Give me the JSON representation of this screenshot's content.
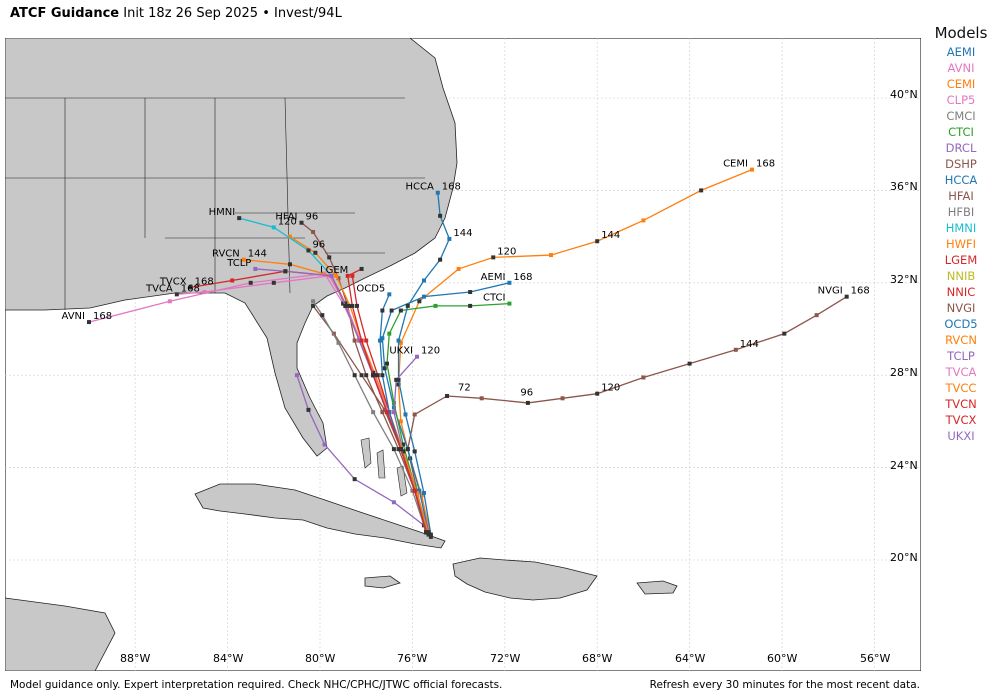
{
  "header": {
    "title_bold": "ATCF Guidance",
    "init": "Init 18z 26 Sep 2025",
    "bullet": "•",
    "storm": "Invest/94L"
  },
  "map": {
    "lon_ticks": [
      "88°W",
      "84°W",
      "80°W",
      "76°W",
      "72°W",
      "68°W",
      "64°W",
      "60°W",
      "56°W"
    ],
    "lat_ticks": [
      "40°N",
      "36°N",
      "32°N",
      "28°N",
      "24°N",
      "20°N"
    ]
  },
  "legend": {
    "title": "Models",
    "items": [
      {
        "name": "AEMI",
        "color": "#1f77b4"
      },
      {
        "name": "AVNI",
        "color": "#e377c2"
      },
      {
        "name": "CEMI",
        "color": "#ff7f0e"
      },
      {
        "name": "CLP5",
        "color": "#e377c2"
      },
      {
        "name": "CMCI",
        "color": "#7f7f7f"
      },
      {
        "name": "CTCI",
        "color": "#2ca02c"
      },
      {
        "name": "DRCL",
        "color": "#9467bd"
      },
      {
        "name": "DSHP",
        "color": "#8c564b"
      },
      {
        "name": "HCCA",
        "color": "#1f77b4"
      },
      {
        "name": "HFAI",
        "color": "#8c564b"
      },
      {
        "name": "HFBI",
        "color": "#7f7f7f"
      },
      {
        "name": "HMNI",
        "color": "#17becf"
      },
      {
        "name": "HWFI",
        "color": "#ff7f0e"
      },
      {
        "name": "LGEM",
        "color": "#d62728"
      },
      {
        "name": "NNIB",
        "color": "#bcbd22"
      },
      {
        "name": "NNIC",
        "color": "#d62728"
      },
      {
        "name": "NVGI",
        "color": "#8c564b"
      },
      {
        "name": "OCD5",
        "color": "#1f77b4"
      },
      {
        "name": "RVCN",
        "color": "#ff7f0e"
      },
      {
        "name": "TCLP",
        "color": "#9467bd"
      },
      {
        "name": "TVCA",
        "color": "#e377c2"
      },
      {
        "name": "TVCC",
        "color": "#ff7f0e"
      },
      {
        "name": "TVCN",
        "color": "#d62728"
      },
      {
        "name": "TVCX",
        "color": "#d62728"
      },
      {
        "name": "UKXI",
        "color": "#9467bd"
      }
    ]
  },
  "footer": {
    "left": "Model guidance only. Expert interpretation required. Check NHC/CPHC/JTWC official forecasts.",
    "right": "Refresh every 30 minutes for the most recent data."
  },
  "tracks": [
    {
      "model": "CEMI",
      "color": "#ff7f0e",
      "label": "CEMI",
      "pts": [
        [
          -75.2,
          21
        ],
        [
          -75.6,
          22.8
        ],
        [
          -76.1,
          24.4
        ],
        [
          -76.5,
          26
        ],
        [
          -76.6,
          27.6
        ],
        [
          -76.5,
          29.4
        ],
        [
          -75.7,
          31.2
        ],
        [
          -74,
          32.6
        ],
        [
          -72.5,
          33.1
        ],
        [
          -70,
          33.2
        ],
        [
          -68,
          33.8
        ],
        [
          -66,
          34.7
        ],
        [
          -63.5,
          36
        ],
        [
          -61.3,
          36.9
        ]
      ],
      "tau": [
        [
          "120",
          -72.5,
          33.1
        ],
        [
          "144",
          -68,
          33.8
        ],
        [
          "168",
          -61.3,
          36.9
        ]
      ]
    },
    {
      "model": "NVGI",
      "color": "#8c564b",
      "label": "NVGI",
      "pts": [
        [
          -75.4,
          21.2
        ],
        [
          -75.8,
          23
        ],
        [
          -76.2,
          24.8
        ],
        [
          -75.9,
          26.3
        ],
        [
          -74.5,
          27.1
        ],
        [
          -73,
          27
        ],
        [
          -71,
          26.8
        ],
        [
          -69.5,
          27
        ],
        [
          -68,
          27.2
        ],
        [
          -66,
          27.9
        ],
        [
          -64,
          28.5
        ],
        [
          -62,
          29.1
        ],
        [
          -59.9,
          29.8
        ],
        [
          -58.5,
          30.6
        ],
        [
          -57.2,
          31.4
        ]
      ],
      "tau": [
        [
          "72",
          -74.2,
          27.2
        ],
        [
          "96",
          -71.5,
          27
        ],
        [
          "120",
          -68,
          27.2
        ],
        [
          "144",
          -62,
          29.1
        ],
        [
          "168",
          -57.2,
          31.4
        ]
      ]
    },
    {
      "model": "AEMI",
      "color": "#1f77b4",
      "label": "AEMI",
      "pts": [
        [
          -75.3,
          21.2
        ],
        [
          -75.7,
          23
        ],
        [
          -76.2,
          24.8
        ],
        [
          -76.8,
          26.6
        ],
        [
          -77.2,
          28.3
        ],
        [
          -77.3,
          29.6
        ],
        [
          -76.9,
          30.8
        ],
        [
          -75.5,
          31.4
        ],
        [
          -73.5,
          31.6
        ],
        [
          -71.8,
          32
        ]
      ],
      "tau": [
        [
          "168",
          -71.8,
          32
        ]
      ]
    },
    {
      "model": "CTCI",
      "color": "#2ca02c",
      "label": "CTCI",
      "pts": [
        [
          -75.4,
          21.3
        ],
        [
          -75.9,
          23.2
        ],
        [
          -76.4,
          25
        ],
        [
          -76.8,
          26.8
        ],
        [
          -77.1,
          28.5
        ],
        [
          -77,
          29.8
        ],
        [
          -76.5,
          30.8
        ],
        [
          -75,
          31
        ],
        [
          -73.5,
          31
        ],
        [
          -71.8,
          31.1
        ]
      ],
      "tau": []
    },
    {
      "model": "HCCA",
      "color": "#1f77b4",
      "label": "HCCA",
      "pts": [
        [
          -75.2,
          21.1
        ],
        [
          -75.5,
          22.9
        ],
        [
          -75.9,
          24.7
        ],
        [
          -76.3,
          26.3
        ],
        [
          -76.6,
          27.8
        ],
        [
          -76.6,
          29.5
        ],
        [
          -76.2,
          31
        ],
        [
          -75.5,
          32.1
        ],
        [
          -74.8,
          33
        ],
        [
          -74.4,
          33.9
        ],
        [
          -74.8,
          34.9
        ],
        [
          -74.9,
          35.9
        ]
      ],
      "tau": [
        [
          "144",
          -74.4,
          33.9
        ],
        [
          "168",
          -74.9,
          35.9
        ]
      ]
    },
    {
      "model": "UKXI",
      "color": "#9467bd",
      "label": "UKXI",
      "pts": [
        [
          -75.3,
          21.2
        ],
        [
          -75.8,
          22.9
        ],
        [
          -76.4,
          24.7
        ],
        [
          -76.8,
          26.4
        ],
        [
          -76.7,
          27.8
        ],
        [
          -75.8,
          28.8
        ]
      ],
      "tau": [
        [
          "120",
          -75.8,
          28.8
        ]
      ]
    },
    {
      "model": "DRCL",
      "color": "#9467bd",
      "label": "",
      "pts": [
        [
          -75.5,
          21.5
        ],
        [
          -76.8,
          22.5
        ],
        [
          -78.5,
          23.5
        ],
        [
          -79.8,
          25
        ],
        [
          -80.5,
          26.5
        ],
        [
          -81,
          28
        ]
      ],
      "tau": []
    },
    {
      "model": "DSHP",
      "color": "#8c564b",
      "label": "",
      "pts": [
        [
          -75.4,
          21.2
        ],
        [
          -75.9,
          23
        ],
        [
          -76.5,
          24.8
        ],
        [
          -77.2,
          26.5
        ],
        [
          -78.2,
          28
        ],
        [
          -79.4,
          29.8
        ],
        [
          -80.3,
          31
        ]
      ],
      "tau": []
    },
    {
      "model": "HFAI",
      "color": "#8c564b",
      "label": "HFAI",
      "pts": [
        [
          -75.4,
          21.2
        ],
        [
          -75.9,
          23
        ],
        [
          -76.6,
          24.8
        ],
        [
          -77.3,
          26.4
        ],
        [
          -78,
          28
        ],
        [
          -78.5,
          29.5
        ],
        [
          -78.8,
          31
        ],
        [
          -79.2,
          32.2
        ],
        [
          -79.6,
          33.1
        ],
        [
          -80.3,
          34.2
        ],
        [
          -80.8,
          34.6
        ]
      ],
      "tau": [
        [
          "96",
          -80.8,
          34.6
        ]
      ]
    },
    {
      "model": "HWFI",
      "color": "#ff7f0e",
      "label": "",
      "pts": [
        [
          -75.3,
          21.1
        ],
        [
          -75.8,
          22.9
        ],
        [
          -76.4,
          24.7
        ],
        [
          -77,
          26.4
        ],
        [
          -77.6,
          28
        ],
        [
          -78.2,
          29.5
        ],
        [
          -78.7,
          31
        ],
        [
          -79.3,
          32.3
        ],
        [
          -80.2,
          33.3
        ],
        [
          -81.3,
          34
        ]
      ],
      "tau": []
    },
    {
      "model": "HMNI",
      "color": "#17becf",
      "label": "HMNI",
      "pts": [
        [
          -75.4,
          21.2
        ],
        [
          -75.9,
          23
        ],
        [
          -76.5,
          24.8
        ],
        [
          -77.1,
          26.4
        ],
        [
          -77.7,
          28
        ],
        [
          -78.3,
          29.5
        ],
        [
          -78.9,
          31
        ],
        [
          -79.5,
          32.3
        ],
        [
          -80.5,
          33.4
        ],
        [
          -82,
          34.4
        ],
        [
          -83.5,
          34.8
        ]
      ],
      "tau": [
        [
          "96",
          -80.5,
          33.4
        ],
        [
          "120",
          -82,
          34.4
        ]
      ]
    },
    {
      "model": "LGEM",
      "color": "#d62728",
      "label": "LGEM",
      "pts": [
        [
          -75.4,
          21.2
        ],
        [
          -75.9,
          23
        ],
        [
          -76.5,
          24.8
        ],
        [
          -77,
          26.4
        ],
        [
          -77.5,
          28
        ],
        [
          -78,
          29.5
        ],
        [
          -78.4,
          31
        ],
        [
          -78.6,
          32.3
        ]
      ],
      "tau": []
    },
    {
      "model": "TVCX",
      "color": "#d62728",
      "label": "TVCX",
      "pts": [
        [
          -75.4,
          21.2
        ],
        [
          -75.9,
          23
        ],
        [
          -76.5,
          24.8
        ],
        [
          -77.1,
          26.5
        ],
        [
          -77.7,
          28.1
        ],
        [
          -78.3,
          29.6
        ],
        [
          -78.9,
          31.1
        ],
        [
          -79.5,
          32.3
        ],
        [
          -81.5,
          32.5
        ],
        [
          -83.8,
          32.1
        ],
        [
          -85.6,
          31.8
        ]
      ],
      "tau": [
        [
          "168",
          -85.6,
          31.8
        ]
      ]
    },
    {
      "model": "TVCA",
      "color": "#e377c2",
      "label": "TVCA",
      "pts": [
        [
          -75.4,
          21.2
        ],
        [
          -75.9,
          23
        ],
        [
          -76.5,
          24.8
        ],
        [
          -77.1,
          26.5
        ],
        [
          -77.7,
          28.1
        ],
        [
          -78.3,
          29.6
        ],
        [
          -78.9,
          31.1
        ],
        [
          -79.6,
          32.3
        ],
        [
          -82,
          32
        ],
        [
          -85,
          31.6
        ],
        [
          -86.2,
          31.5
        ]
      ],
      "tau": [
        [
          "168",
          -86.2,
          31.5
        ]
      ]
    },
    {
      "model": "AVNI",
      "color": "#e377c2",
      "label": "AVNI",
      "pts": [
        [
          -75.4,
          21.2
        ],
        [
          -75.9,
          23
        ],
        [
          -76.5,
          24.8
        ],
        [
          -77.1,
          26.5
        ],
        [
          -77.7,
          28.1
        ],
        [
          -78.3,
          29.6
        ],
        [
          -79,
          31.1
        ],
        [
          -79.8,
          32.4
        ],
        [
          -83,
          32
        ],
        [
          -86.5,
          31.2
        ],
        [
          -90,
          30.3
        ]
      ],
      "tau": [
        [
          "168",
          -90,
          30.3
        ]
      ]
    },
    {
      "model": "RVCN",
      "color": "#ff7f0e",
      "label": "RVCN",
      "pts": [
        [
          -75.4,
          21.2
        ],
        [
          -75.9,
          23
        ],
        [
          -76.5,
          24.8
        ],
        [
          -77.1,
          26.4
        ],
        [
          -77.7,
          28
        ],
        [
          -78.3,
          29.5
        ],
        [
          -78.9,
          31
        ],
        [
          -79.5,
          32.3
        ],
        [
          -81.3,
          32.8
        ],
        [
          -83.3,
          33
        ]
      ],
      "tau": [
        [
          "144",
          -83.3,
          33
        ]
      ]
    },
    {
      "model": "TCLP",
      "color": "#9467bd",
      "label": "TCLP",
      "pts": [
        [
          -75.4,
          21.2
        ],
        [
          -75.9,
          23
        ],
        [
          -76.5,
          24.8
        ],
        [
          -77.1,
          26.4
        ],
        [
          -77.7,
          28
        ],
        [
          -78.3,
          29.5
        ],
        [
          -78.9,
          31
        ],
        [
          -79.5,
          32.3
        ],
        [
          -81.5,
          32.5
        ],
        [
          -82.8,
          32.6
        ]
      ],
      "tau": []
    },
    {
      "model": "CMCI",
      "color": "#7f7f7f",
      "label": "",
      "pts": [
        [
          -75.4,
          21.2
        ],
        [
          -76,
          23
        ],
        [
          -76.8,
          24.8
        ],
        [
          -77.7,
          26.4
        ],
        [
          -78.5,
          28
        ],
        [
          -79.2,
          29.4
        ],
        [
          -79.9,
          30.6
        ],
        [
          -80.3,
          31.2
        ]
      ],
      "tau": []
    },
    {
      "model": "OCD5",
      "color": "#1f77b4",
      "label": "OCD5",
      "pts": [
        [
          -75.4,
          21.2
        ],
        [
          -75.9,
          23
        ],
        [
          -76.5,
          24.8
        ],
        [
          -77,
          26.4
        ],
        [
          -77.3,
          28
        ],
        [
          -77.4,
          29.5
        ],
        [
          -77.3,
          30.8
        ],
        [
          -77,
          31.5
        ]
      ],
      "tau": []
    },
    {
      "model": "TVCN",
      "color": "#d62728",
      "label": "",
      "pts": [
        [
          -75.4,
          21.2
        ],
        [
          -75.9,
          23
        ],
        [
          -76.5,
          24.8
        ],
        [
          -77.1,
          26.4
        ],
        [
          -77.7,
          28
        ],
        [
          -78.2,
          29.5
        ],
        [
          -78.6,
          31
        ],
        [
          -78.8,
          32.3
        ],
        [
          -78.2,
          32.6
        ]
      ],
      "tau": []
    }
  ]
}
